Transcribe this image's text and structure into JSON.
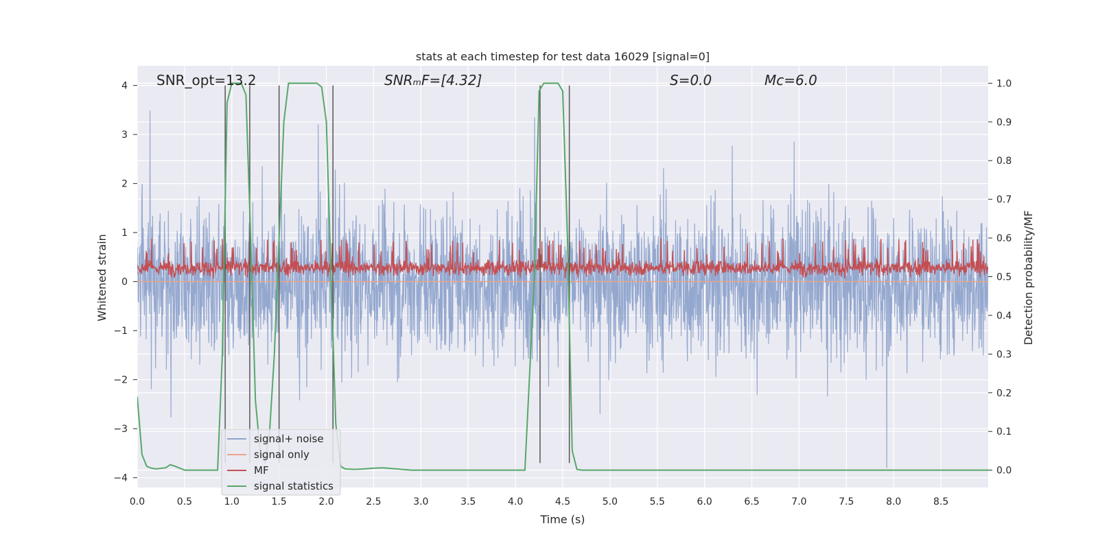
{
  "chart_data": {
    "type": "line",
    "title": "stats at each timestep for test data 16029 [signal=0]",
    "xlabel": "Time (s)",
    "ylabel_left": "Whitened strain",
    "ylabel_right": "Detection probability/MF",
    "xlim": [
      0.0,
      9.0
    ],
    "ylim_left": [
      -4.2,
      4.4
    ],
    "ylim_right": [
      -0.045,
      1.045
    ],
    "x_ticks": [
      "0.0",
      "0.5",
      "1.0",
      "1.5",
      "2.0",
      "2.5",
      "3.0",
      "3.5",
      "4.0",
      "4.5",
      "5.0",
      "5.5",
      "6.0",
      "6.5",
      "7.0",
      "7.5",
      "8.0",
      "8.5"
    ],
    "x_tick_values": [
      0.0,
      0.5,
      1.0,
      1.5,
      2.0,
      2.5,
      3.0,
      3.5,
      4.0,
      4.5,
      5.0,
      5.5,
      6.0,
      6.5,
      7.0,
      7.5,
      8.0,
      8.5
    ],
    "y_left_ticks": [
      "4",
      "3",
      "2",
      "1",
      "0",
      "−1",
      "−2",
      "−3",
      "−4"
    ],
    "y_left_tick_values": [
      4,
      3,
      2,
      1,
      0,
      -1,
      -2,
      -3,
      -4
    ],
    "y_right_ticks": [
      "1.0",
      "0.9",
      "0.8",
      "0.7",
      "0.6",
      "0.5",
      "0.4",
      "0.3",
      "0.2",
      "0.1",
      "0.0"
    ],
    "y_right_tick_values": [
      1.0,
      0.9,
      0.8,
      0.7,
      0.6,
      0.5,
      0.4,
      0.3,
      0.2,
      0.1,
      0.0
    ],
    "grid": true,
    "legend_placement": "lower-left",
    "annotations": [
      {
        "id": "snr-opt",
        "text": "SNR_opt=13.2"
      },
      {
        "id": "snr-mf",
        "text": "SNRₘF=[4.32]"
      },
      {
        "id": "s-value",
        "text": "S=0.0"
      },
      {
        "id": "mc-value",
        "text": "Mᴄ=6.0"
      }
    ],
    "series": [
      {
        "name": "signal+ noise",
        "color": "#8fa4cc",
        "axis": "left",
        "kind": "noise",
        "amplitude_range": [
          -3.8,
          4.0
        ]
      },
      {
        "name": "signal only",
        "color": "#e8a58a",
        "axis": "left",
        "kind": "flat",
        "value": 0.0
      },
      {
        "name": "MF",
        "color": "#c44e52",
        "axis": "right",
        "kind": "noise",
        "range": [
          0.49,
          0.6
        ]
      },
      {
        "name": "signal statistics",
        "color": "#55a868",
        "axis": "right",
        "x": [
          0.0,
          0.05,
          0.1,
          0.15,
          0.2,
          0.3,
          0.35,
          0.4,
          0.5,
          0.6,
          0.7,
          0.8,
          0.85,
          0.9,
          0.95,
          1.0,
          1.1,
          1.15,
          1.2,
          1.25,
          1.3,
          1.35,
          1.4,
          1.45,
          1.5,
          1.55,
          1.6,
          1.7,
          1.8,
          1.9,
          1.95,
          2.0,
          2.05,
          2.1,
          2.15,
          2.2,
          2.3,
          2.4,
          2.5,
          2.6,
          2.7,
          2.8,
          2.9,
          3.0,
          3.2,
          3.5,
          4.0,
          4.1,
          4.2,
          4.25,
          4.3,
          4.35,
          4.4,
          4.45,
          4.5,
          4.55,
          4.6,
          4.65,
          4.7,
          4.8,
          5.0,
          6.0,
          7.0,
          8.0,
          9.0
        ],
        "y": [
          0.19,
          0.04,
          0.01,
          0.005,
          0.003,
          0.006,
          0.014,
          0.01,
          0.0,
          0.0,
          0.0,
          0.0,
          0.0,
          0.3,
          0.95,
          1.0,
          1.0,
          0.97,
          0.6,
          0.18,
          0.05,
          0.02,
          0.1,
          0.3,
          0.6,
          0.9,
          1.0,
          1.0,
          1.0,
          1.0,
          0.99,
          0.9,
          0.5,
          0.12,
          0.01,
          0.003,
          0.002,
          0.003,
          0.005,
          0.006,
          0.004,
          0.002,
          0.0,
          0.0,
          0.0,
          0.0,
          0.0,
          0.0,
          0.5,
          0.98,
          1.0,
          1.0,
          1.0,
          1.0,
          0.98,
          0.6,
          0.05,
          0.002,
          0.0,
          0.0,
          0.0,
          0.0,
          0.0,
          0.0,
          0.0
        ]
      }
    ],
    "vertical_markers": {
      "color": "#555555",
      "x": [
        0.93,
        1.19,
        1.5,
        2.07,
        4.26,
        4.57
      ],
      "y_range": [
        -3.7,
        4.0
      ]
    }
  },
  "legend": [
    {
      "label": "signal+ noise",
      "color": "#8fa4cc"
    },
    {
      "label": "signal only",
      "color": "#e8a58a"
    },
    {
      "label": "MF",
      "color": "#c44e52"
    },
    {
      "label": "signal statistics",
      "color": "#55a868"
    }
  ]
}
